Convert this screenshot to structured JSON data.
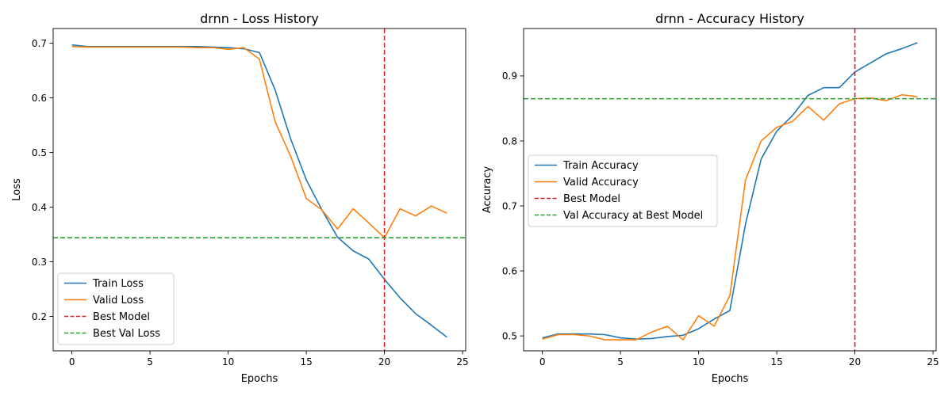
{
  "chart_data": [
    {
      "type": "line",
      "title": "drnn - Loss History",
      "xlabel": "Epochs",
      "ylabel": "Loss",
      "xlim": [
        -1.2,
        25.2
      ],
      "ylim": [
        0.137,
        0.727
      ],
      "xticks": [
        0,
        5,
        10,
        15,
        20,
        25
      ],
      "yticks": [
        0.2,
        0.3,
        0.4,
        0.5,
        0.6,
        0.7
      ],
      "grid": false,
      "legend": "lower-left",
      "x": [
        0,
        1,
        2,
        3,
        4,
        5,
        6,
        7,
        8,
        9,
        10,
        11,
        12,
        13,
        14,
        15,
        16,
        17,
        18,
        19,
        20,
        21,
        22,
        23,
        24
      ],
      "series": [
        {
          "name": "Train Loss",
          "color": "#1f77b4",
          "values": [
            0.697,
            0.694,
            0.694,
            0.694,
            0.694,
            0.694,
            0.694,
            0.694,
            0.694,
            0.693,
            0.692,
            0.69,
            0.683,
            0.615,
            0.525,
            0.45,
            0.395,
            0.345,
            0.32,
            0.305,
            0.268,
            0.234,
            0.205,
            0.184,
            0.162
          ]
        },
        {
          "name": "Valid Loss",
          "color": "#ff7f0e",
          "values": [
            0.694,
            0.693,
            0.693,
            0.693,
            0.693,
            0.693,
            0.693,
            0.693,
            0.692,
            0.692,
            0.689,
            0.692,
            0.671,
            0.557,
            0.493,
            0.416,
            0.395,
            0.36,
            0.397,
            0.371,
            0.344,
            0.397,
            0.384,
            0.402,
            0.389
          ]
        }
      ],
      "best_model": {
        "label": "Best Model",
        "x": 20,
        "color": "#d62728"
      },
      "best_value": {
        "label": "Best Val Loss",
        "y": 0.344,
        "color": "#2ca02c"
      }
    },
    {
      "type": "line",
      "title": "drnn - Accuracy History",
      "xlabel": "Epochs",
      "ylabel": "Accuracy",
      "xlim": [
        -1.2,
        25.2
      ],
      "ylim": [
        0.477,
        0.973
      ],
      "xticks": [
        0,
        5,
        10,
        15,
        20,
        25
      ],
      "yticks": [
        0.5,
        0.6,
        0.7,
        0.8,
        0.9
      ],
      "grid": false,
      "legend": "center-left",
      "x": [
        0,
        1,
        2,
        3,
        4,
        5,
        6,
        7,
        8,
        9,
        10,
        11,
        12,
        13,
        14,
        15,
        16,
        17,
        18,
        19,
        20,
        21,
        22,
        23,
        24
      ],
      "series": [
        {
          "name": "Train Accuracy",
          "color": "#1f77b4",
          "values": [
            0.497,
            0.503,
            0.503,
            0.503,
            0.502,
            0.497,
            0.495,
            0.496,
            0.499,
            0.501,
            0.511,
            0.526,
            0.539,
            0.672,
            0.772,
            0.815,
            0.839,
            0.87,
            0.882,
            0.882,
            0.906,
            0.92,
            0.934,
            0.942,
            0.951
          ]
        },
        {
          "name": "Valid Accuracy",
          "color": "#ff7f0e",
          "values": [
            0.495,
            0.502,
            0.502,
            0.5,
            0.494,
            0.494,
            0.494,
            0.506,
            0.515,
            0.494,
            0.531,
            0.515,
            0.562,
            0.74,
            0.8,
            0.821,
            0.83,
            0.853,
            0.832,
            0.857,
            0.865,
            0.866,
            0.862,
            0.871,
            0.868
          ]
        }
      ],
      "best_model": {
        "label": "Best Model",
        "x": 20,
        "color": "#d62728"
      },
      "best_value": {
        "label": "Val Accuracy at Best Model",
        "y": 0.865,
        "color": "#2ca02c"
      }
    }
  ]
}
